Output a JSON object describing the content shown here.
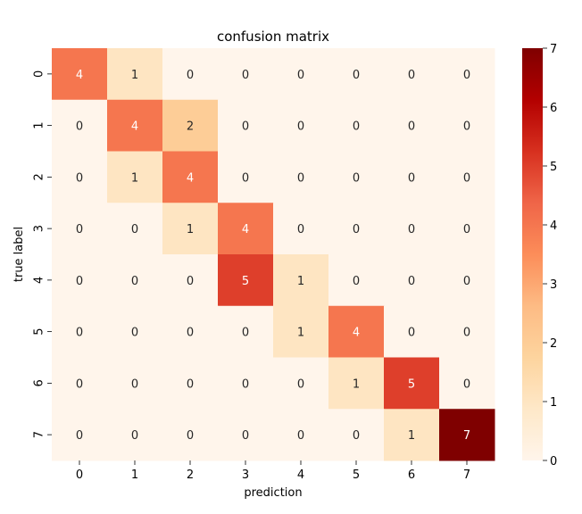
{
  "chart_data": {
    "type": "heatmap",
    "title": "confusion matrix",
    "xlabel": "prediction",
    "ylabel": "true label",
    "x_categories": [
      "0",
      "1",
      "2",
      "3",
      "4",
      "5",
      "6",
      "7"
    ],
    "y_categories": [
      "0",
      "1",
      "2",
      "3",
      "4",
      "5",
      "6",
      "7"
    ],
    "values": [
      [
        4,
        1,
        0,
        0,
        0,
        0,
        0,
        0
      ],
      [
        0,
        4,
        2,
        0,
        0,
        0,
        0,
        0
      ],
      [
        0,
        1,
        4,
        0,
        0,
        0,
        0,
        0
      ],
      [
        0,
        0,
        1,
        4,
        0,
        0,
        0,
        0
      ],
      [
        0,
        0,
        0,
        5,
        1,
        0,
        0,
        0
      ],
      [
        0,
        0,
        0,
        0,
        1,
        4,
        0,
        0
      ],
      [
        0,
        0,
        0,
        0,
        0,
        1,
        5,
        0
      ],
      [
        0,
        0,
        0,
        0,
        0,
        0,
        1,
        7
      ]
    ],
    "colorbar": {
      "min": 0,
      "max": 7,
      "ticks": [
        "0",
        "1",
        "2",
        "3",
        "4",
        "5",
        "6",
        "7"
      ],
      "colormap": "OrRd-like",
      "stops": [
        "#fff5eb",
        "#fee8c8",
        "#fdd49e",
        "#fdbb84",
        "#fc8d59",
        "#ef6548",
        "#d7301f",
        "#b30000",
        "#7f0000"
      ]
    },
    "annotations": true
  }
}
